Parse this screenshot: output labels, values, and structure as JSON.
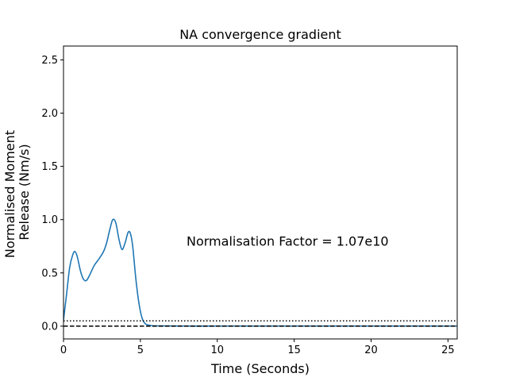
{
  "chart_data": {
    "type": "line",
    "title": "NA convergence gradient",
    "xlabel": "Time (Seconds)",
    "ylabel_lines": [
      "Normalised Moment",
      "Release (Nm/s)"
    ],
    "xlim": [
      0,
      25.6
    ],
    "ylim": [
      -0.12,
      2.63
    ],
    "xticks": [
      0,
      5,
      10,
      15,
      20,
      25
    ],
    "yticks": [
      0.0,
      0.5,
      1.0,
      1.5,
      2.0,
      2.5
    ],
    "xtick_labels": [
      "0",
      "5",
      "10",
      "15",
      "20",
      "25"
    ],
    "ytick_labels": [
      "0.0",
      "0.5",
      "1.0",
      "1.5",
      "2.0",
      "2.5"
    ],
    "grid": false,
    "annotation": {
      "text": "Normalisation Factor = 1.07e10",
      "x": 8.0,
      "y": 0.8
    },
    "series": [
      {
        "color": "#1f77b4",
        "x": [
          0,
          0.2,
          0.4,
          0.6,
          0.75,
          0.9,
          1.1,
          1.3,
          1.5,
          1.7,
          2.0,
          2.3,
          2.6,
          2.8,
          3.0,
          3.2,
          3.4,
          3.6,
          3.8,
          4.0,
          4.2,
          4.35,
          4.5,
          4.7,
          4.9,
          5.1,
          5.3,
          5.6,
          6.0,
          8,
          10,
          15,
          20,
          25.6
        ],
        "y": [
          0.06,
          0.3,
          0.55,
          0.67,
          0.7,
          0.65,
          0.52,
          0.44,
          0.43,
          0.48,
          0.57,
          0.63,
          0.7,
          0.78,
          0.9,
          1.0,
          0.97,
          0.82,
          0.72,
          0.78,
          0.88,
          0.87,
          0.75,
          0.45,
          0.22,
          0.08,
          0.025,
          0.008,
          0.003,
          0.001,
          0.001,
          0.001,
          0.001,
          0.001
        ]
      },
      {
        "color": "#000000",
        "dash": "dotted",
        "x": [
          0,
          25.6
        ],
        "y": [
          0.05,
          0.05
        ]
      },
      {
        "color": "#000000",
        "dash": "dashed",
        "x": [
          0,
          25.6
        ],
        "y": [
          0.0,
          0.0
        ]
      }
    ]
  }
}
